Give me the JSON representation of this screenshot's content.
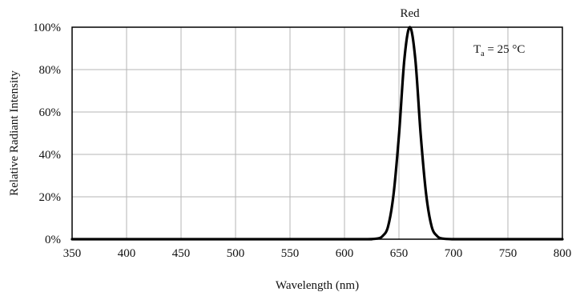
{
  "chart_data": {
    "type": "line",
    "title": "",
    "xlabel": "Wavelength (nm)",
    "ylabel": "Relative Radiant Intensity",
    "xlim": [
      350,
      800
    ],
    "ylim": [
      0,
      100
    ],
    "x_ticks": [
      "350",
      "400",
      "450",
      "500",
      "550",
      "600",
      "650",
      "700",
      "750",
      "800"
    ],
    "y_ticks": [
      "0%",
      "20%",
      "40%",
      "60%",
      "80%",
      "100%"
    ],
    "grid": true,
    "series": [
      {
        "name": "Red",
        "color": "#000000",
        "x": [
          350,
          600,
          620,
          630,
          635,
          640,
          645,
          650,
          655,
          660,
          665,
          670,
          675,
          680,
          685,
          690,
          700,
          720,
          800
        ],
        "y": [
          0,
          0,
          0,
          0.3,
          1.5,
          6,
          21,
          49,
          85,
          100,
          85,
          49,
          21,
          6,
          1.5,
          0.3,
          0,
          0,
          0
        ]
      }
    ],
    "annotations": [
      {
        "text": "Red",
        "x": 660
      }
    ],
    "condition": {
      "symbol": "T",
      "subscript": "a",
      "rest": " = 25 °C"
    }
  }
}
